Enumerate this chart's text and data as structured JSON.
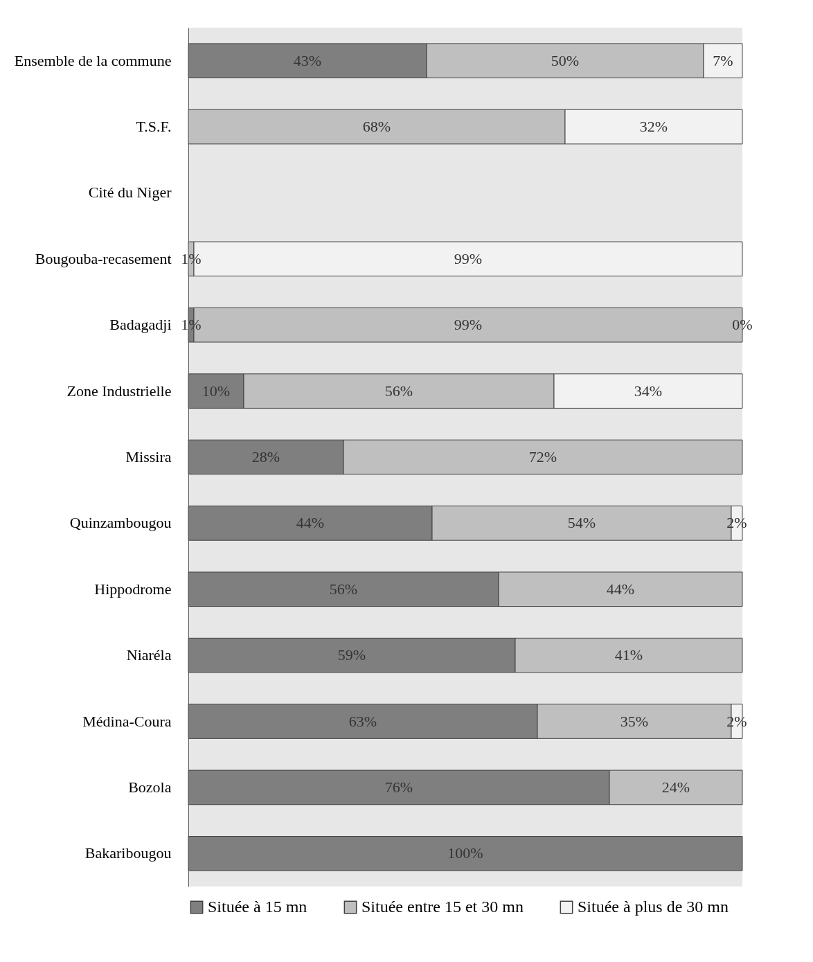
{
  "chart_data": {
    "type": "bar",
    "orientation": "horizontal",
    "stacked": true,
    "legend": "bottom",
    "grid": false,
    "xlim": [
      0,
      100
    ],
    "tick_labels": "y",
    "categories": [
      "Ensemble de la commune",
      "T.S.F.",
      "Cité du Niger",
      "Bougouba-recasement",
      "Badagadji",
      "Zone Industrielle",
      "Missira",
      "Quinzambougou",
      "Hippodrome",
      "Niaréla",
      "Médina-Coura",
      "Bozola",
      "Bakaribougou"
    ],
    "series": [
      {
        "name": "Située à 15 mn",
        "color": "#7f7f7f",
        "values": [
          43,
          null,
          null,
          null,
          1,
          10,
          28,
          44,
          56,
          59,
          63,
          76,
          100
        ],
        "value_labels": [
          "43%",
          null,
          null,
          null,
          "1%",
          "10%",
          "28%",
          "44%",
          "56%",
          "59%",
          "63%",
          "76%",
          "100%"
        ]
      },
      {
        "name": "Située entre 15 et 30 mn",
        "color": "#bfbfbf",
        "values": [
          50,
          68,
          null,
          1,
          99,
          56,
          72,
          54,
          44,
          41,
          35,
          24,
          null
        ],
        "value_labels": [
          "50%",
          "68%",
          null,
          "1%",
          "99%",
          "56%",
          "72%",
          "54%",
          "44%",
          "41%",
          "35%",
          "24%",
          null
        ]
      },
      {
        "name": "Située à plus de 30 mn",
        "color": "#f2f2f2",
        "values": [
          7,
          32,
          null,
          99,
          0,
          34,
          null,
          2,
          null,
          null,
          2,
          null,
          null
        ],
        "value_labels": [
          "7%",
          "32%",
          null,
          "99%",
          "0%",
          "34%",
          null,
          "2%",
          null,
          null,
          "2%",
          null,
          null
        ]
      }
    ]
  }
}
